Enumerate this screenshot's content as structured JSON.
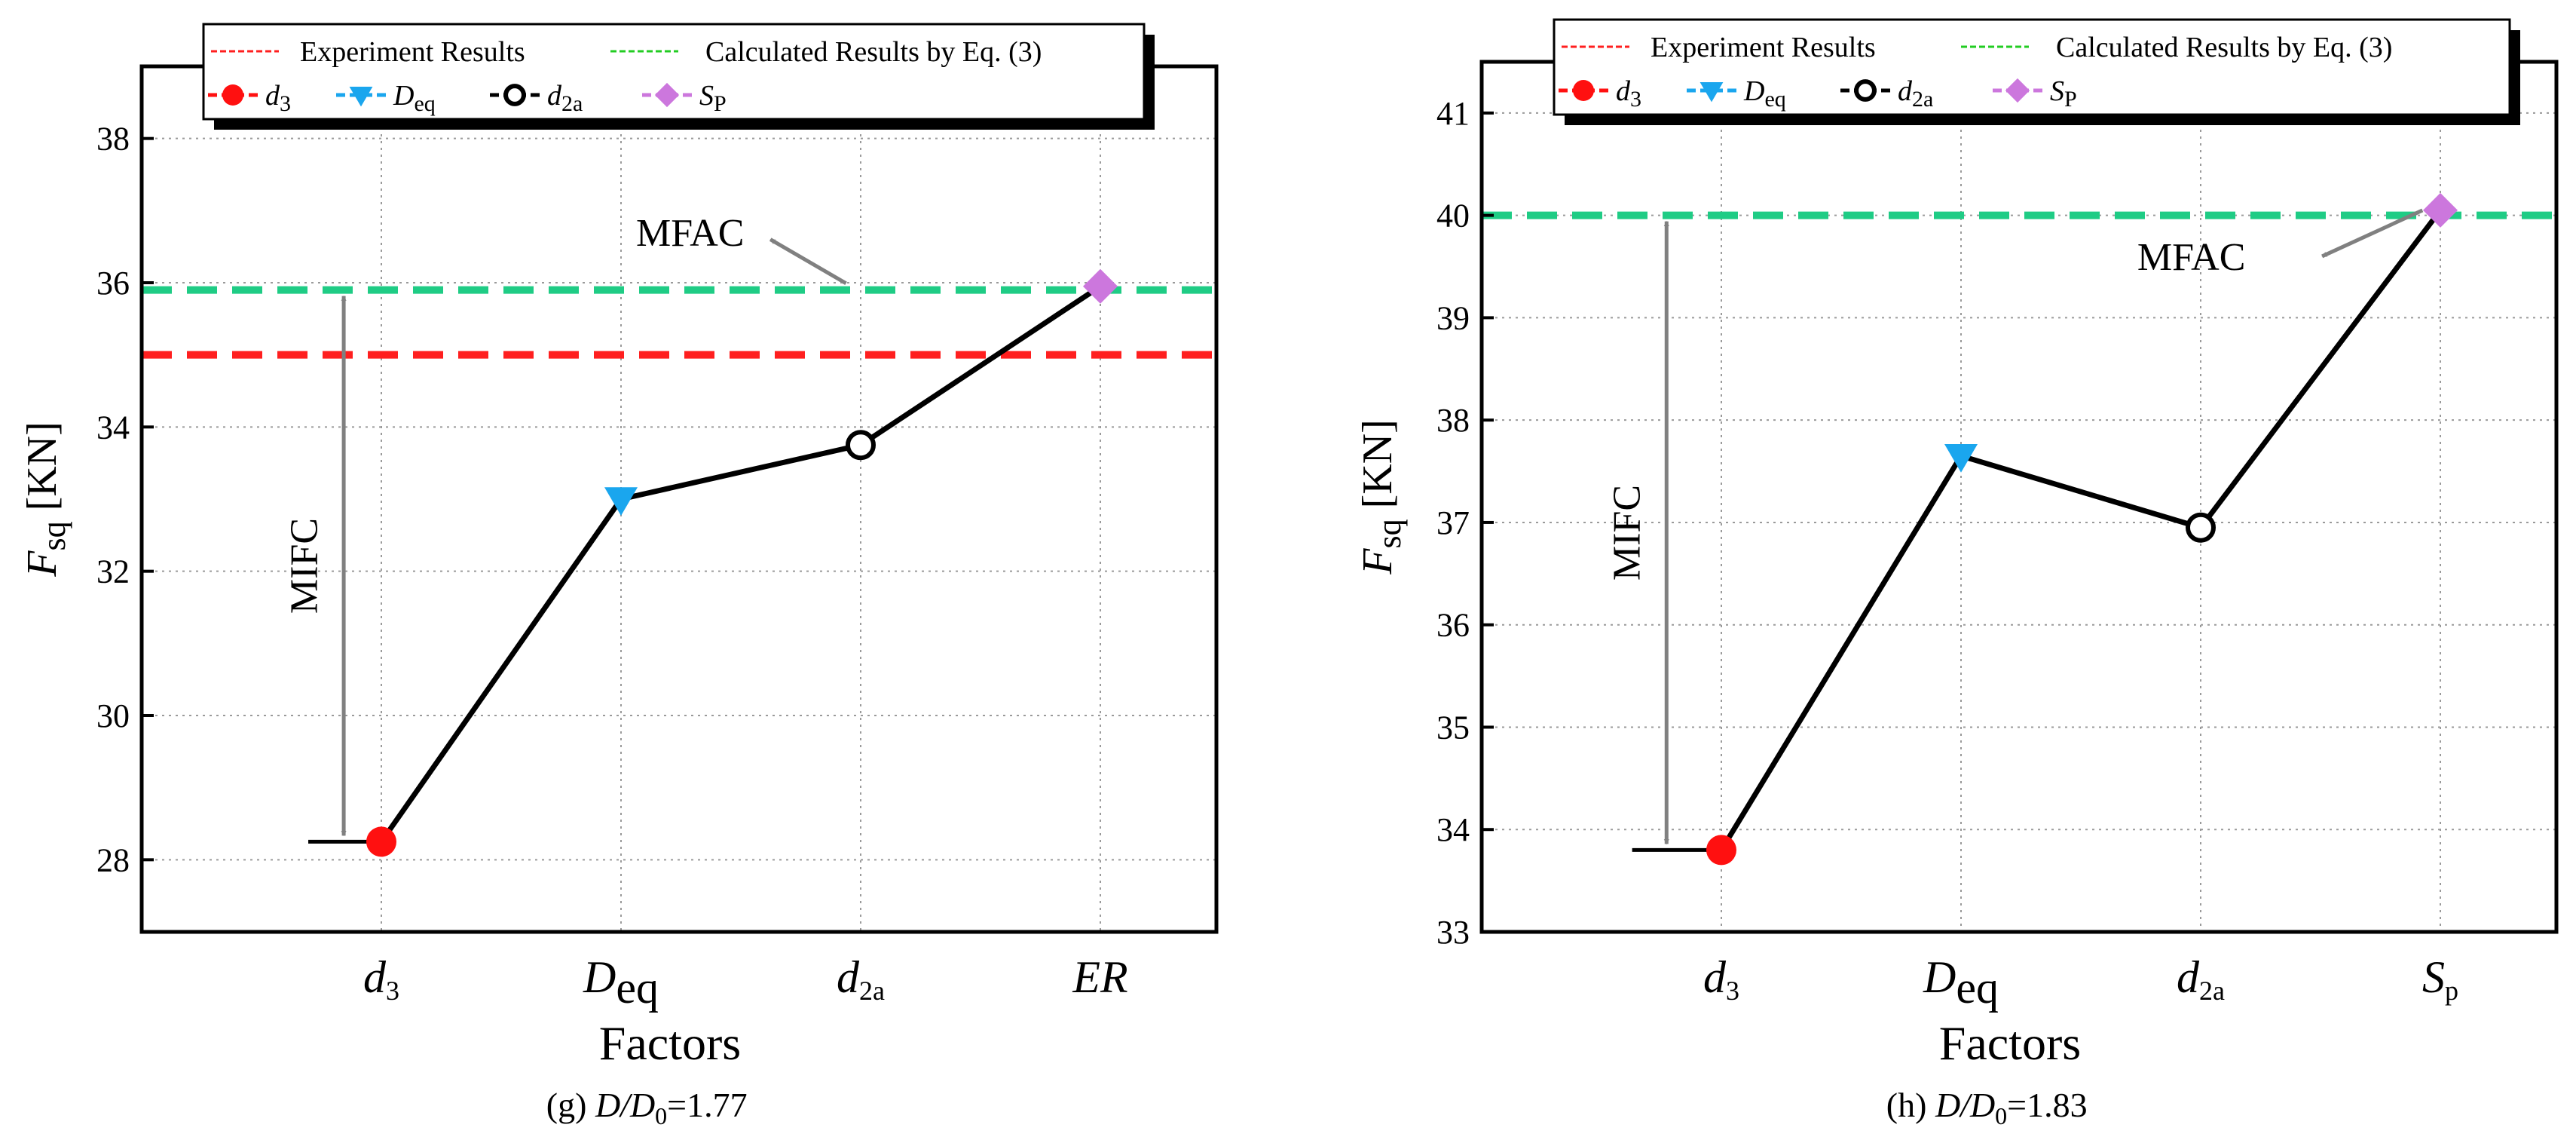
{
  "colors": {
    "experiment": "#ff1f1f",
    "calculated": "#1fcc85",
    "legend_calc_swatch": "#22cc22",
    "d3": "#ff1010",
    "deq": "#1aa6ee",
    "d2a": "#000000",
    "sp": "#cc77dd",
    "arrow": "#808080",
    "line": "#000000",
    "grid": "#9a9a9a"
  },
  "chart_data": [
    {
      "type": "line",
      "panel": "g",
      "caption": {
        "label": "(g)",
        "ratio_text": "D/D",
        "ratio_sub": "0",
        "ratio_value": "=1.77"
      },
      "xlabel": "Factors",
      "ylabel": {
        "main": "F",
        "sub": "sq",
        "unit": " [KN]"
      },
      "ylim": [
        27,
        39
      ],
      "yticks": [
        "28",
        "30",
        "32",
        "34",
        "36",
        "38"
      ],
      "categories": [
        {
          "main": "d",
          "sub": "3"
        },
        {
          "main": "D",
          "sub": "eq"
        },
        {
          "main": "d",
          "sub": "2a"
        },
        {
          "main": "ER",
          "sub": ""
        }
      ],
      "values": [
        28.25,
        33.0,
        33.75,
        35.95
      ],
      "markers": [
        "d3",
        "deq",
        "d2a",
        "sp"
      ],
      "experiment_value": 35.0,
      "calculated_value": 35.9,
      "legend": {
        "experiment": "Experiment Results",
        "calculated": "Calculated  Results by Eq. (3)",
        "d3": {
          "main": "d",
          "sub": "3"
        },
        "deq": {
          "main": "D",
          "sub": "eq"
        },
        "d2a": {
          "main": "d",
          "sub": "2a"
        },
        "sp": {
          "main": "S",
          "sub": "P"
        }
      },
      "annotations": {
        "mifc": "MIFC",
        "mfac": "MFAC"
      }
    },
    {
      "type": "line",
      "panel": "h",
      "caption": {
        "label": "(h)",
        "ratio_text": "D/D",
        "ratio_sub": "0",
        "ratio_value": "=1.83"
      },
      "xlabel": "Factors",
      "ylabel": {
        "main": "F",
        "sub": "sq",
        "unit": " [KN]"
      },
      "ylim": [
        33,
        41.5
      ],
      "yticks": [
        "33",
        "34",
        "35",
        "36",
        "37",
        "38",
        "39",
        "40",
        "41"
      ],
      "categories": [
        {
          "main": "d",
          "sub": "3"
        },
        {
          "main": "D",
          "sub": "eq"
        },
        {
          "main": "d",
          "sub": "2a"
        },
        {
          "main": "S",
          "sub": "p"
        }
      ],
      "values": [
        33.8,
        37.65,
        36.95,
        40.05
      ],
      "markers": [
        "d3",
        "deq",
        "d2a",
        "sp"
      ],
      "experiment_value": 40.0,
      "calculated_value": 40.0,
      "legend": {
        "experiment": "Experiment Results",
        "calculated": "Calculated  Results by Eq. (3)",
        "d3": {
          "main": "d",
          "sub": "3"
        },
        "deq": {
          "main": "D",
          "sub": "eq"
        },
        "d2a": {
          "main": "d",
          "sub": "2a"
        },
        "sp": {
          "main": "S",
          "sub": "P"
        }
      },
      "annotations": {
        "mifc": "MIFC",
        "mfac": "MFAC"
      }
    }
  ]
}
